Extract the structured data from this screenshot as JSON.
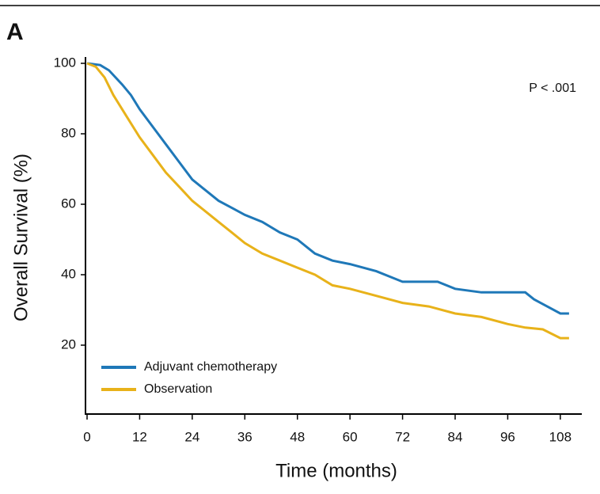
{
  "panel_label": "A",
  "chart_data": {
    "type": "line",
    "xlabel": "Time (months)",
    "ylabel": "Overall Survival (%)",
    "annotation": "P < .001",
    "xlim": [
      0,
      112
    ],
    "ylim": [
      0,
      100
    ],
    "xticks": [
      0,
      12,
      24,
      36,
      48,
      60,
      72,
      84,
      96,
      108
    ],
    "yticks": [
      20,
      40,
      60,
      80,
      100
    ],
    "legend": "lower left",
    "series": [
      {
        "name": "Adjuvant chemotherapy",
        "color": "#1f78b8",
        "x": [
          0,
          3,
          5,
          8,
          10,
          12,
          15,
          18,
          21,
          24,
          27,
          30,
          33,
          36,
          40,
          44,
          48,
          50,
          52,
          56,
          60,
          66,
          72,
          80,
          84,
          90,
          96,
          100,
          102,
          105,
          108,
          110
        ],
        "values": [
          100,
          99.5,
          98,
          94,
          91,
          87,
          82,
          77,
          72,
          67,
          64,
          61,
          59,
          57,
          55,
          52,
          50,
          48,
          46,
          44,
          43,
          41,
          38,
          38,
          36,
          35,
          35,
          35,
          33,
          31,
          29,
          29
        ]
      },
      {
        "name": "Observation",
        "color": "#e8b21a",
        "x": [
          0,
          2,
          4,
          6,
          9,
          12,
          15,
          18,
          21,
          24,
          27,
          30,
          33,
          36,
          40,
          44,
          48,
          52,
          56,
          60,
          66,
          72,
          78,
          84,
          90,
          96,
          100,
          104,
          108,
          110
        ],
        "values": [
          100,
          99,
          96,
          91,
          85,
          79,
          74,
          69,
          65,
          61,
          58,
          55,
          52,
          49,
          46,
          44,
          42,
          40,
          37,
          36,
          34,
          32,
          31,
          29,
          28,
          26,
          25,
          24.5,
          22,
          22
        ]
      }
    ]
  }
}
